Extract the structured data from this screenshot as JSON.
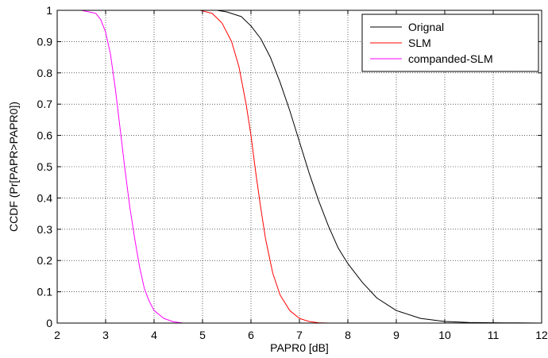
{
  "chart_data": {
    "type": "line",
    "xlabel": "PAPR0 [dB]",
    "ylabel": "CCDF (Pr[PAPR>PAPR0])",
    "xlim": [
      2,
      12
    ],
    "ylim": [
      0,
      1
    ],
    "xticks": [
      "2",
      "3",
      "4",
      "5",
      "6",
      "7",
      "8",
      "9",
      "10",
      "11",
      "12"
    ],
    "yticks": [
      "0",
      "0.1",
      "0.2",
      "0.3",
      "0.4",
      "0.5",
      "0.6",
      "0.7",
      "0.8",
      "0.9",
      "1"
    ],
    "grid": true,
    "legend_position": "top-right",
    "series": [
      {
        "name": "Orignal",
        "color": "#000000",
        "x": [
          5.0,
          5.3,
          5.5,
          5.8,
          6.0,
          6.2,
          6.4,
          6.6,
          6.8,
          7.0,
          7.2,
          7.4,
          7.6,
          7.8,
          8.0,
          8.3,
          8.6,
          9.0,
          9.5,
          10.0,
          10.5,
          11.0,
          11.5,
          12.0
        ],
        "values": [
          1.0,
          1.0,
          0.995,
          0.98,
          0.95,
          0.91,
          0.85,
          0.77,
          0.68,
          0.58,
          0.48,
          0.39,
          0.31,
          0.24,
          0.19,
          0.13,
          0.08,
          0.04,
          0.015,
          0.005,
          0.002,
          0.001,
          0.0005,
          0.0
        ]
      },
      {
        "name": "SLM",
        "color": "#ff0000",
        "x": [
          4.95,
          5.2,
          5.4,
          5.6,
          5.75,
          5.9,
          6.0,
          6.1,
          6.2,
          6.3,
          6.45,
          6.6,
          6.8,
          7.0,
          7.2,
          7.4,
          7.6
        ],
        "values": [
          1.0,
          0.99,
          0.96,
          0.9,
          0.82,
          0.7,
          0.6,
          0.48,
          0.37,
          0.27,
          0.16,
          0.09,
          0.04,
          0.015,
          0.005,
          0.001,
          0.0
        ]
      },
      {
        "name": "companded-SLM",
        "color": "#ff00ff",
        "x": [
          2.2,
          2.5,
          2.8,
          2.9,
          3.0,
          3.1,
          3.2,
          3.3,
          3.4,
          3.5,
          3.6,
          3.7,
          3.8,
          3.9,
          4.0,
          4.2,
          4.4,
          4.6
        ],
        "values": [
          1.0,
          1.0,
          0.99,
          0.97,
          0.93,
          0.86,
          0.75,
          0.62,
          0.49,
          0.37,
          0.27,
          0.18,
          0.11,
          0.07,
          0.04,
          0.015,
          0.004,
          0.0
        ]
      }
    ]
  }
}
